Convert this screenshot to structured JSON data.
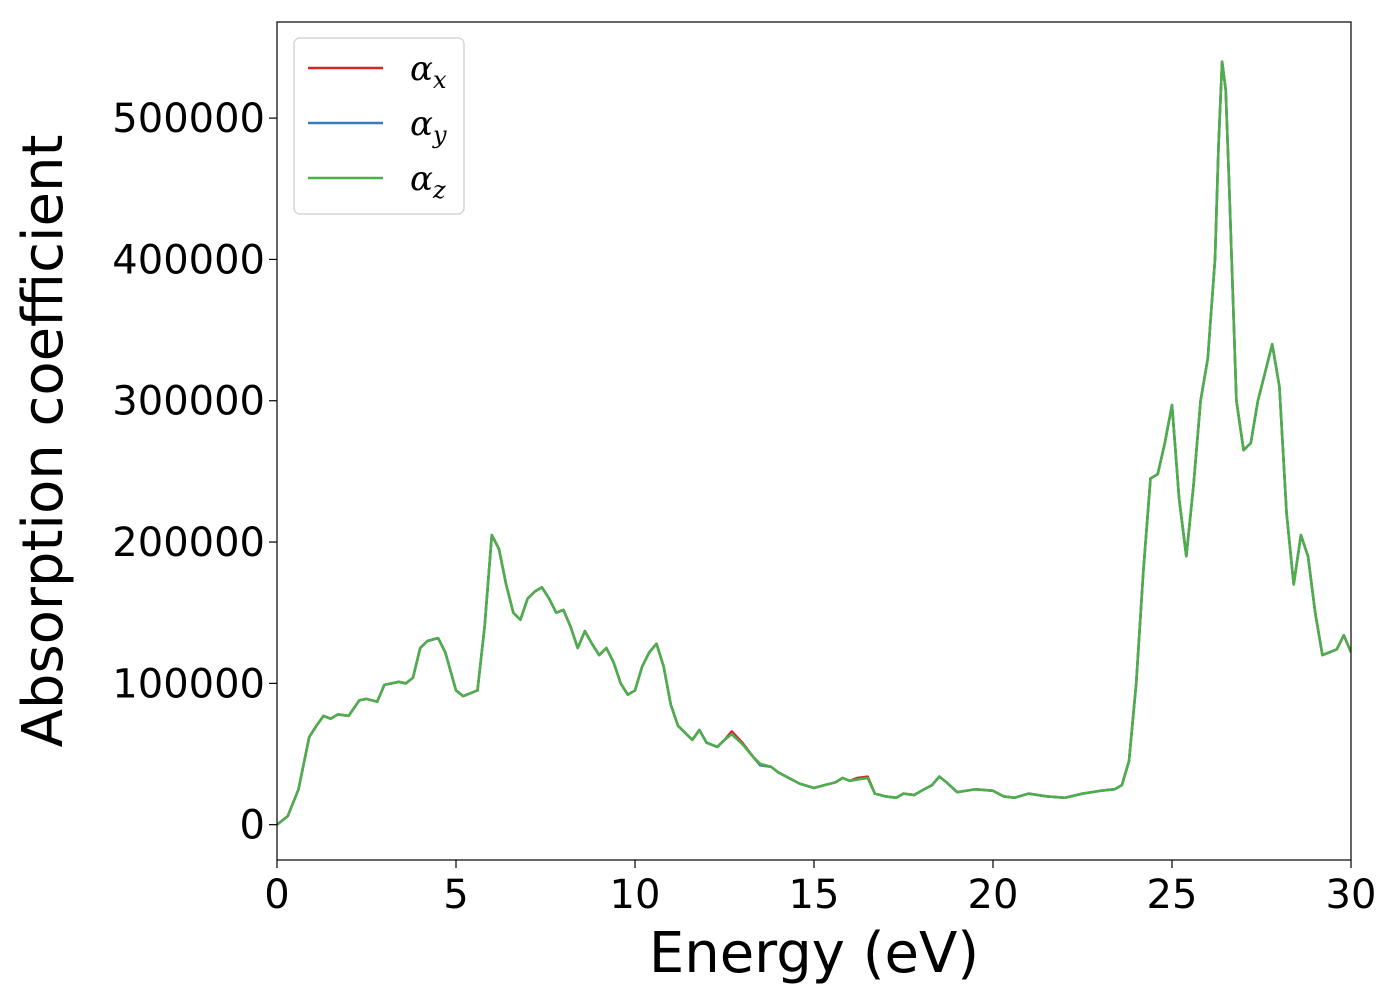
{
  "chart_data": {
    "type": "line",
    "title": "",
    "xlabel": "Energy (eV)",
    "ylabel": "Absorption coefficient",
    "xlim": [
      0,
      30
    ],
    "ylim": [
      -25000,
      568000
    ],
    "xticks": [
      0,
      5,
      10,
      15,
      20,
      25,
      30
    ],
    "xtick_labels": [
      "0",
      "5",
      "10",
      "15",
      "20",
      "25",
      "30"
    ],
    "yticks": [
      0,
      100000,
      200000,
      300000,
      400000,
      500000
    ],
    "ytick_labels": [
      "0",
      "100000",
      "200000",
      "300000",
      "400000",
      "500000"
    ],
    "grid": false,
    "legend_position": "top-left",
    "x": [
      0,
      0.3,
      0.6,
      0.9,
      1.1,
      1.3,
      1.5,
      1.7,
      2.0,
      2.3,
      2.5,
      2.8,
      3.0,
      3.2,
      3.4,
      3.6,
      3.8,
      4.0,
      4.2,
      4.5,
      4.7,
      5.0,
      5.2,
      5.6,
      5.8,
      6.0,
      6.2,
      6.4,
      6.6,
      6.8,
      7.0,
      7.2,
      7.4,
      7.6,
      7.8,
      8.0,
      8.2,
      8.4,
      8.6,
      8.8,
      9.0,
      9.2,
      9.4,
      9.6,
      9.8,
      10.0,
      10.2,
      10.4,
      10.6,
      10.8,
      11.0,
      11.2,
      11.4,
      11.6,
      11.8,
      12.0,
      12.3,
      12.5,
      12.7,
      13.0,
      13.3,
      13.5,
      13.8,
      14.0,
      14.3,
      14.6,
      15.0,
      15.3,
      15.6,
      15.8,
      16.0,
      16.2,
      16.5,
      16.7,
      17.0,
      17.3,
      17.5,
      17.8,
      18.0,
      18.3,
      18.5,
      18.7,
      19.0,
      19.5,
      20.0,
      20.3,
      20.6,
      21.0,
      21.5,
      22.0,
      22.5,
      23.0,
      23.4,
      23.6,
      23.8,
      24.0,
      24.2,
      24.4,
      24.6,
      24.8,
      25.0,
      25.2,
      25.4,
      25.6,
      25.8,
      26.0,
      26.2,
      26.3,
      26.4,
      26.5,
      26.6,
      26.8,
      27.0,
      27.2,
      27.4,
      27.6,
      27.8,
      28.0,
      28.2,
      28.4,
      28.6,
      28.8,
      29.0,
      29.2,
      29.4,
      29.6,
      29.8,
      30.0
    ],
    "series": [
      {
        "name": "α_x",
        "color": "#d62728",
        "values": [
          0,
          6000,
          25000,
          62000,
          70000,
          77000,
          75000,
          78000,
          77000,
          88000,
          89000,
          87000,
          99000,
          100000,
          101000,
          100000,
          104000,
          125000,
          130000,
          132000,
          122000,
          95000,
          91000,
          95000,
          140000,
          205000,
          195000,
          170000,
          150000,
          145000,
          160000,
          165000,
          168000,
          160000,
          150000,
          152000,
          140000,
          125000,
          137000,
          128000,
          120000,
          125000,
          115000,
          100000,
          92000,
          95000,
          112000,
          122000,
          128000,
          112000,
          85000,
          70000,
          65000,
          60000,
          67000,
          58000,
          55000,
          60000,
          66000,
          58000,
          48000,
          42000,
          41000,
          37000,
          33000,
          29000,
          26000,
          28000,
          30000,
          33000,
          31000,
          33000,
          34000,
          22000,
          20000,
          19000,
          22000,
          21000,
          24000,
          28000,
          34000,
          30000,
          23000,
          25000,
          24000,
          20000,
          19000,
          22000,
          20000,
          19000,
          22000,
          24000,
          25000,
          28000,
          45000,
          100000,
          180000,
          245000,
          248000,
          270000,
          297000,
          230000,
          190000,
          240000,
          300000,
          330000,
          400000,
          480000,
          540000,
          520000,
          450000,
          300000,
          265000,
          270000,
          300000,
          320000,
          340000,
          310000,
          220000,
          170000,
          205000,
          190000,
          150000,
          120000,
          122000,
          124000,
          134000,
          122000
        ]
      },
      {
        "name": "α_y",
        "color": "#377eb8",
        "values": [
          0,
          6000,
          25000,
          62000,
          70000,
          77000,
          75000,
          78000,
          77000,
          88000,
          89000,
          87000,
          99000,
          100000,
          101000,
          100000,
          104000,
          125000,
          130000,
          132000,
          122000,
          95000,
          91000,
          95000,
          140000,
          205000,
          195000,
          170000,
          150000,
          145000,
          160000,
          165000,
          168000,
          160000,
          150000,
          152000,
          140000,
          125000,
          137000,
          128000,
          120000,
          125000,
          115000,
          100000,
          92000,
          95000,
          112000,
          122000,
          128000,
          112000,
          85000,
          70000,
          65000,
          60000,
          67000,
          58000,
          55000,
          60000,
          64000,
          57000,
          48000,
          42000,
          41000,
          37000,
          33000,
          29000,
          26000,
          28000,
          30000,
          33000,
          31000,
          32000,
          33000,
          22000,
          20000,
          19000,
          22000,
          21000,
          24000,
          28000,
          34000,
          30000,
          23000,
          25000,
          24000,
          20000,
          19000,
          22000,
          20000,
          19000,
          22000,
          24000,
          25000,
          28000,
          45000,
          100000,
          180000,
          245000,
          248000,
          270000,
          297000,
          230000,
          190000,
          240000,
          300000,
          330000,
          400000,
          480000,
          540000,
          520000,
          450000,
          300000,
          265000,
          270000,
          300000,
          320000,
          340000,
          310000,
          220000,
          170000,
          205000,
          190000,
          150000,
          120000,
          122000,
          124000,
          134000,
          122000
        ]
      },
      {
        "name": "α_z",
        "color": "#4daf4a",
        "values": [
          0,
          6000,
          25000,
          62000,
          70000,
          77000,
          75000,
          78000,
          77000,
          88000,
          89000,
          87000,
          99000,
          100000,
          101000,
          100000,
          104000,
          125000,
          130000,
          132000,
          122000,
          95000,
          91000,
          95000,
          140000,
          205000,
          195000,
          170000,
          150000,
          145000,
          160000,
          165000,
          168000,
          160000,
          150000,
          152000,
          140000,
          125000,
          137000,
          128000,
          120000,
          125000,
          115000,
          100000,
          92000,
          95000,
          112000,
          122000,
          128000,
          112000,
          85000,
          70000,
          65000,
          60000,
          67000,
          58000,
          55000,
          60000,
          64000,
          57000,
          48000,
          43000,
          41000,
          37000,
          33000,
          29000,
          26000,
          28000,
          30000,
          33000,
          31000,
          32000,
          33000,
          22000,
          20000,
          19000,
          22000,
          21000,
          24000,
          28000,
          34000,
          30000,
          23000,
          25000,
          24000,
          20000,
          19000,
          22000,
          20000,
          19000,
          22000,
          24000,
          25000,
          28000,
          45000,
          100000,
          180000,
          245000,
          248000,
          270000,
          297000,
          230000,
          190000,
          240000,
          300000,
          330000,
          400000,
          480000,
          540000,
          520000,
          450000,
          300000,
          265000,
          270000,
          300000,
          320000,
          340000,
          310000,
          220000,
          170000,
          205000,
          190000,
          150000,
          120000,
          122000,
          124000,
          134000,
          122000
        ]
      }
    ],
    "legend": [
      {
        "base": "α",
        "sub": "x",
        "color": "#d62728"
      },
      {
        "base": "α",
        "sub": "y",
        "color": "#377eb8"
      },
      {
        "base": "α",
        "sub": "z",
        "color": "#4daf4a"
      }
    ]
  }
}
